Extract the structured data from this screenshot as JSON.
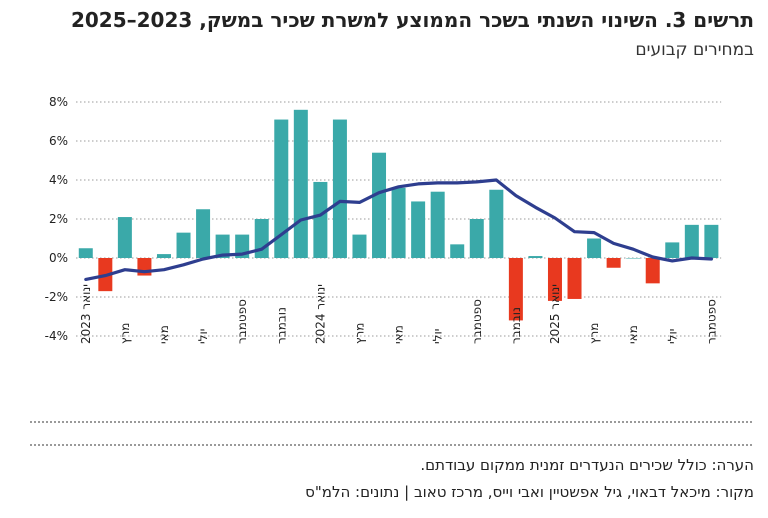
{
  "title": "תרשים 3. השינוי השנתי בשכר הממוצע למשרת שכיר במשק, 2023–2025",
  "subtitle": "במחירים קבועים",
  "note": "הערה: כולל שכירים הנעדרים זמנית ממקום עבודתם.",
  "source": "מקור: מיכאל דבאוי, גיל אפשטיין ואבי וייס, מרכז טאוב | נתונים: הלמ\"ס",
  "colors": {
    "positive_bar": "#3aa9a9",
    "negative_bar": "#e8391f",
    "line": "#2e3e8f"
  },
  "chart_data": {
    "type": "bar",
    "ylim": [
      -4,
      8
    ],
    "yticks": [
      "-4%",
      "-2%",
      "0%",
      "2%",
      "4%",
      "6%",
      "8%"
    ],
    "ytick_values": [
      -4,
      -2,
      0,
      2,
      4,
      6,
      8
    ],
    "grid": "horizontal dotted",
    "x_tick_labels": [
      {
        "index": 0,
        "label": "ינואר 2023"
      },
      {
        "index": 2,
        "label": "מרץ"
      },
      {
        "index": 4,
        "label": "מאי"
      },
      {
        "index": 6,
        "label": "יולי"
      },
      {
        "index": 8,
        "label": "ספטמבר"
      },
      {
        "index": 10,
        "label": "נובמבר"
      },
      {
        "index": 12,
        "label": "ינואר 2024"
      },
      {
        "index": 14,
        "label": "מרץ"
      },
      {
        "index": 16,
        "label": "מאי"
      },
      {
        "index": 18,
        "label": "יולי"
      },
      {
        "index": 20,
        "label": "ספטמבר"
      },
      {
        "index": 22,
        "label": "נובמבר"
      },
      {
        "index": 24,
        "label": "ינואר 2025"
      },
      {
        "index": 26,
        "label": "מרץ"
      },
      {
        "index": 28,
        "label": "מאי"
      },
      {
        "index": 30,
        "label": "יולי"
      },
      {
        "index": 32,
        "label": "ספטמבר"
      }
    ],
    "bars": [
      0.5,
      -1.7,
      2.1,
      -0.9,
      0.2,
      1.3,
      2.5,
      1.2,
      1.2,
      2.0,
      7.1,
      7.6,
      3.9,
      7.1,
      1.2,
      5.4,
      3.6,
      2.9,
      3.4,
      0.7,
      2.0,
      3.5,
      -3.2,
      0.1,
      -2.2,
      -2.1,
      1.0,
      -0.5,
      0.0,
      -1.3,
      0.8,
      1.7,
      1.7
    ],
    "trend": [
      -1.1,
      -0.9,
      -0.6,
      -0.7,
      -0.6,
      -0.35,
      -0.05,
      0.15,
      0.2,
      0.45,
      1.2,
      1.95,
      2.2,
      2.9,
      2.85,
      3.35,
      3.65,
      3.8,
      3.85,
      3.85,
      3.9,
      4.0,
      3.2,
      2.6,
      2.05,
      1.35,
      1.3,
      0.75,
      0.45,
      0.05,
      -0.15,
      0.0,
      -0.05
    ]
  }
}
